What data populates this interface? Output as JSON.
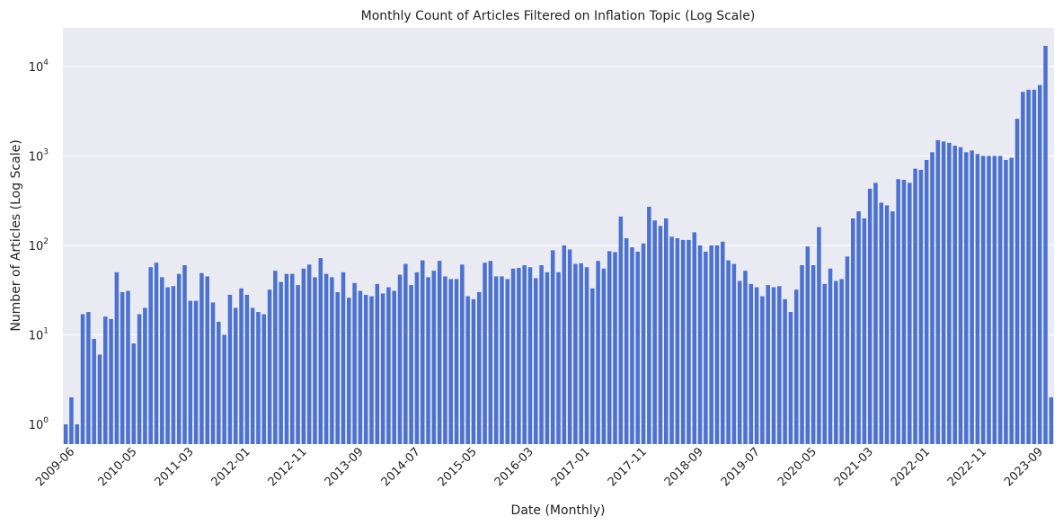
{
  "chart_data": {
    "type": "bar",
    "title": "Monthly Count of Articles Filtered on Inflation Topic (Log Scale)",
    "xlabel": "Date (Monthly)",
    "ylabel": "Number of Articles (Log Scale)",
    "y_scale": "log",
    "ylim": [
      0.6,
      27000
    ],
    "grid": "horizontal",
    "bar_color": "#4c72d0",
    "background_color": "#eaeaf2",
    "x_tick_labels": [
      "2009-06",
      "2010-05",
      "2011-03",
      "2012-01",
      "2012-11",
      "2013-09",
      "2014-07",
      "2015-05",
      "2016-03",
      "2017-01",
      "2017-11",
      "2018-09",
      "2019-07",
      "2020-05",
      "2021-03",
      "2022-01",
      "2022-11",
      "2023-09"
    ],
    "y_tick_labels": [
      {
        "base": "10",
        "exponent": "0"
      },
      {
        "base": "10",
        "exponent": "1"
      },
      {
        "base": "10",
        "exponent": "2"
      },
      {
        "base": "10",
        "exponent": "3"
      },
      {
        "base": "10",
        "exponent": "4"
      }
    ],
    "start_month": "2009-05",
    "values": [
      1,
      2,
      1,
      17,
      18,
      9,
      6,
      16,
      15,
      50,
      30,
      31,
      8,
      17,
      20,
      57,
      64,
      44,
      34,
      35,
      48,
      60,
      24,
      24,
      49,
      45,
      23,
      14,
      10,
      28,
      20,
      33,
      28,
      20,
      18,
      17,
      32,
      52,
      39,
      48,
      48,
      36,
      55,
      61,
      44,
      72,
      48,
      44,
      30,
      50,
      26,
      38,
      31,
      28,
      27,
      37,
      29,
      34,
      31,
      47,
      62,
      36,
      50,
      68,
      44,
      52,
      67,
      45,
      42,
      42,
      61,
      27,
      25,
      30,
      64,
      67,
      45,
      45,
      42,
      55,
      56,
      60,
      57,
      43,
      60,
      50,
      88,
      50,
      100,
      90,
      62,
      63,
      57,
      33,
      67,
      55,
      86,
      84,
      210,
      120,
      95,
      85,
      105,
      270,
      190,
      165,
      200,
      125,
      120,
      115,
      115,
      140,
      100,
      85,
      100,
      100,
      110,
      68,
      62,
      40,
      52,
      37,
      34,
      27,
      36,
      34,
      35,
      25,
      18,
      32,
      60,
      97,
      60,
      160,
      37,
      55,
      40,
      42,
      75,
      200,
      240,
      200,
      430,
      500,
      300,
      280,
      240,
      550,
      540,
      500,
      720,
      700,
      900,
      1100,
      1500,
      1450,
      1400,
      1300,
      1250,
      1100,
      1150,
      1050,
      1000,
      1000,
      1000,
      1000,
      900,
      950,
      2600,
      5200,
      5500,
      5500,
      6200,
      17000,
      2
    ]
  }
}
